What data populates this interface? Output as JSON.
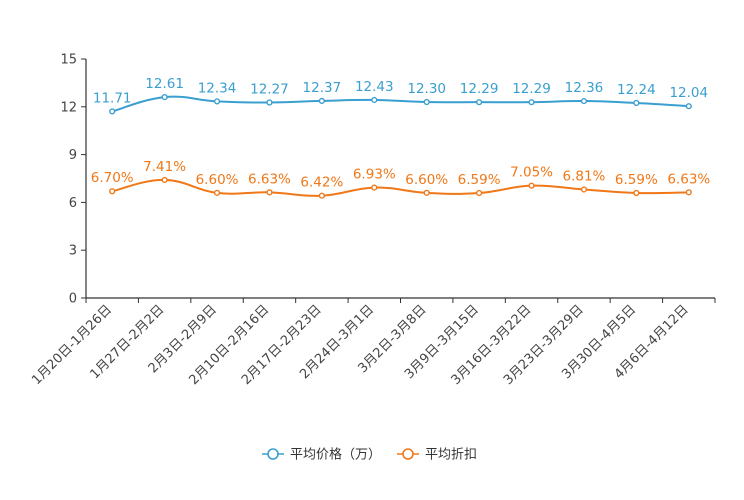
{
  "chart_data": {
    "type": "line",
    "title": "",
    "xlabel": "",
    "ylabel": "",
    "categories": [
      "1月20日-1月26日",
      "1月27日-2月2日",
      "2月3日-2月9日",
      "2月10日-2月16日",
      "2月17日-2月23日",
      "2月24日-3月1日",
      "3月2日-3月8日",
      "3月9日-3月15日",
      "3月16日-3月22日",
      "3月23日-3月29日",
      "3月30日-4月5日",
      "4月6日-4月12日"
    ],
    "ylim": [
      0,
      15
    ],
    "yticks": [
      0,
      3,
      6,
      9,
      12,
      15
    ],
    "series": [
      {
        "name": "平均价格（万）",
        "color": "#3a9fd0",
        "values": [
          11.71,
          12.61,
          12.34,
          12.27,
          12.37,
          12.43,
          12.3,
          12.29,
          12.29,
          12.36,
          12.24,
          12.04
        ],
        "labels": [
          "11.71",
          "12.61",
          "12.34",
          "12.27",
          "12.37",
          "12.43",
          "12.30",
          "12.29",
          "12.29",
          "12.36",
          "12.24",
          "12.04"
        ]
      },
      {
        "name": "平均折扣",
        "color": "#f07818",
        "values": [
          6.7,
          7.41,
          6.6,
          6.63,
          6.42,
          6.93,
          6.6,
          6.59,
          7.05,
          6.81,
          6.59,
          6.63
        ],
        "labels": [
          "6.70%",
          "7.41%",
          "6.60%",
          "6.63%",
          "6.42%",
          "6.93%",
          "6.60%",
          "6.59%",
          "7.05%",
          "6.81%",
          "6.59%",
          "6.63%"
        ]
      }
    ],
    "legend": {
      "position": "bottom-center",
      "items": [
        "平均价格（万）",
        "平均折扣"
      ]
    },
    "grid": false
  }
}
